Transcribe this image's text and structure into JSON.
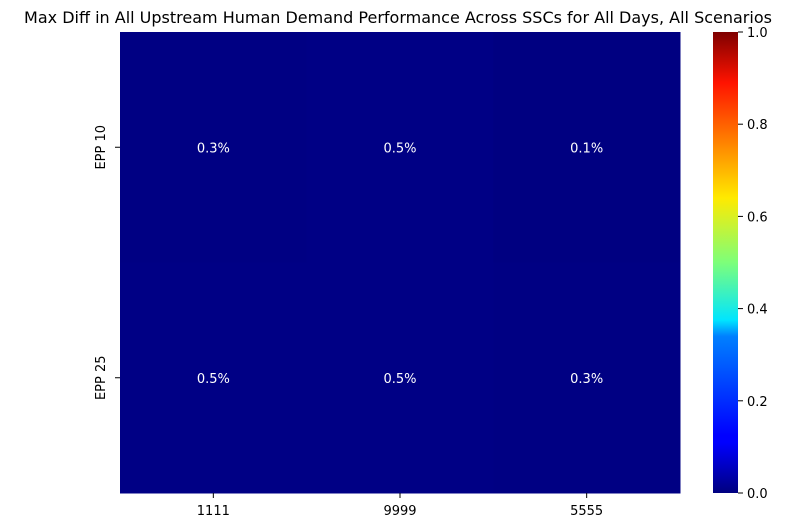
{
  "chart_data": {
    "type": "heatmap",
    "title": "Max Diff in All Upstream Human Demand Performance Across SSCs for All Days, All Scenarios",
    "xlabel": "",
    "ylabel": "",
    "x_categories": [
      "1111",
      "9999",
      "5555"
    ],
    "y_categories": [
      "EPP 10",
      "EPP 25"
    ],
    "values": [
      [
        0.003,
        0.005,
        0.001
      ],
      [
        0.005,
        0.005,
        0.003
      ]
    ],
    "annotations": [
      [
        "0.3%",
        "0.5%",
        "0.1%"
      ],
      [
        "0.5%",
        "0.5%",
        "0.3%"
      ]
    ],
    "colormap": "jet",
    "vmin": 0.0,
    "vmax": 1.0,
    "colorbar_ticks": [
      0.0,
      0.2,
      0.4,
      0.6,
      0.8,
      1.0
    ],
    "colorbar_tick_labels": [
      "0.0",
      "0.2",
      "0.4",
      "0.6",
      "0.8",
      "1.0"
    ],
    "annotation_color": "#ffffff",
    "grid": false
  }
}
